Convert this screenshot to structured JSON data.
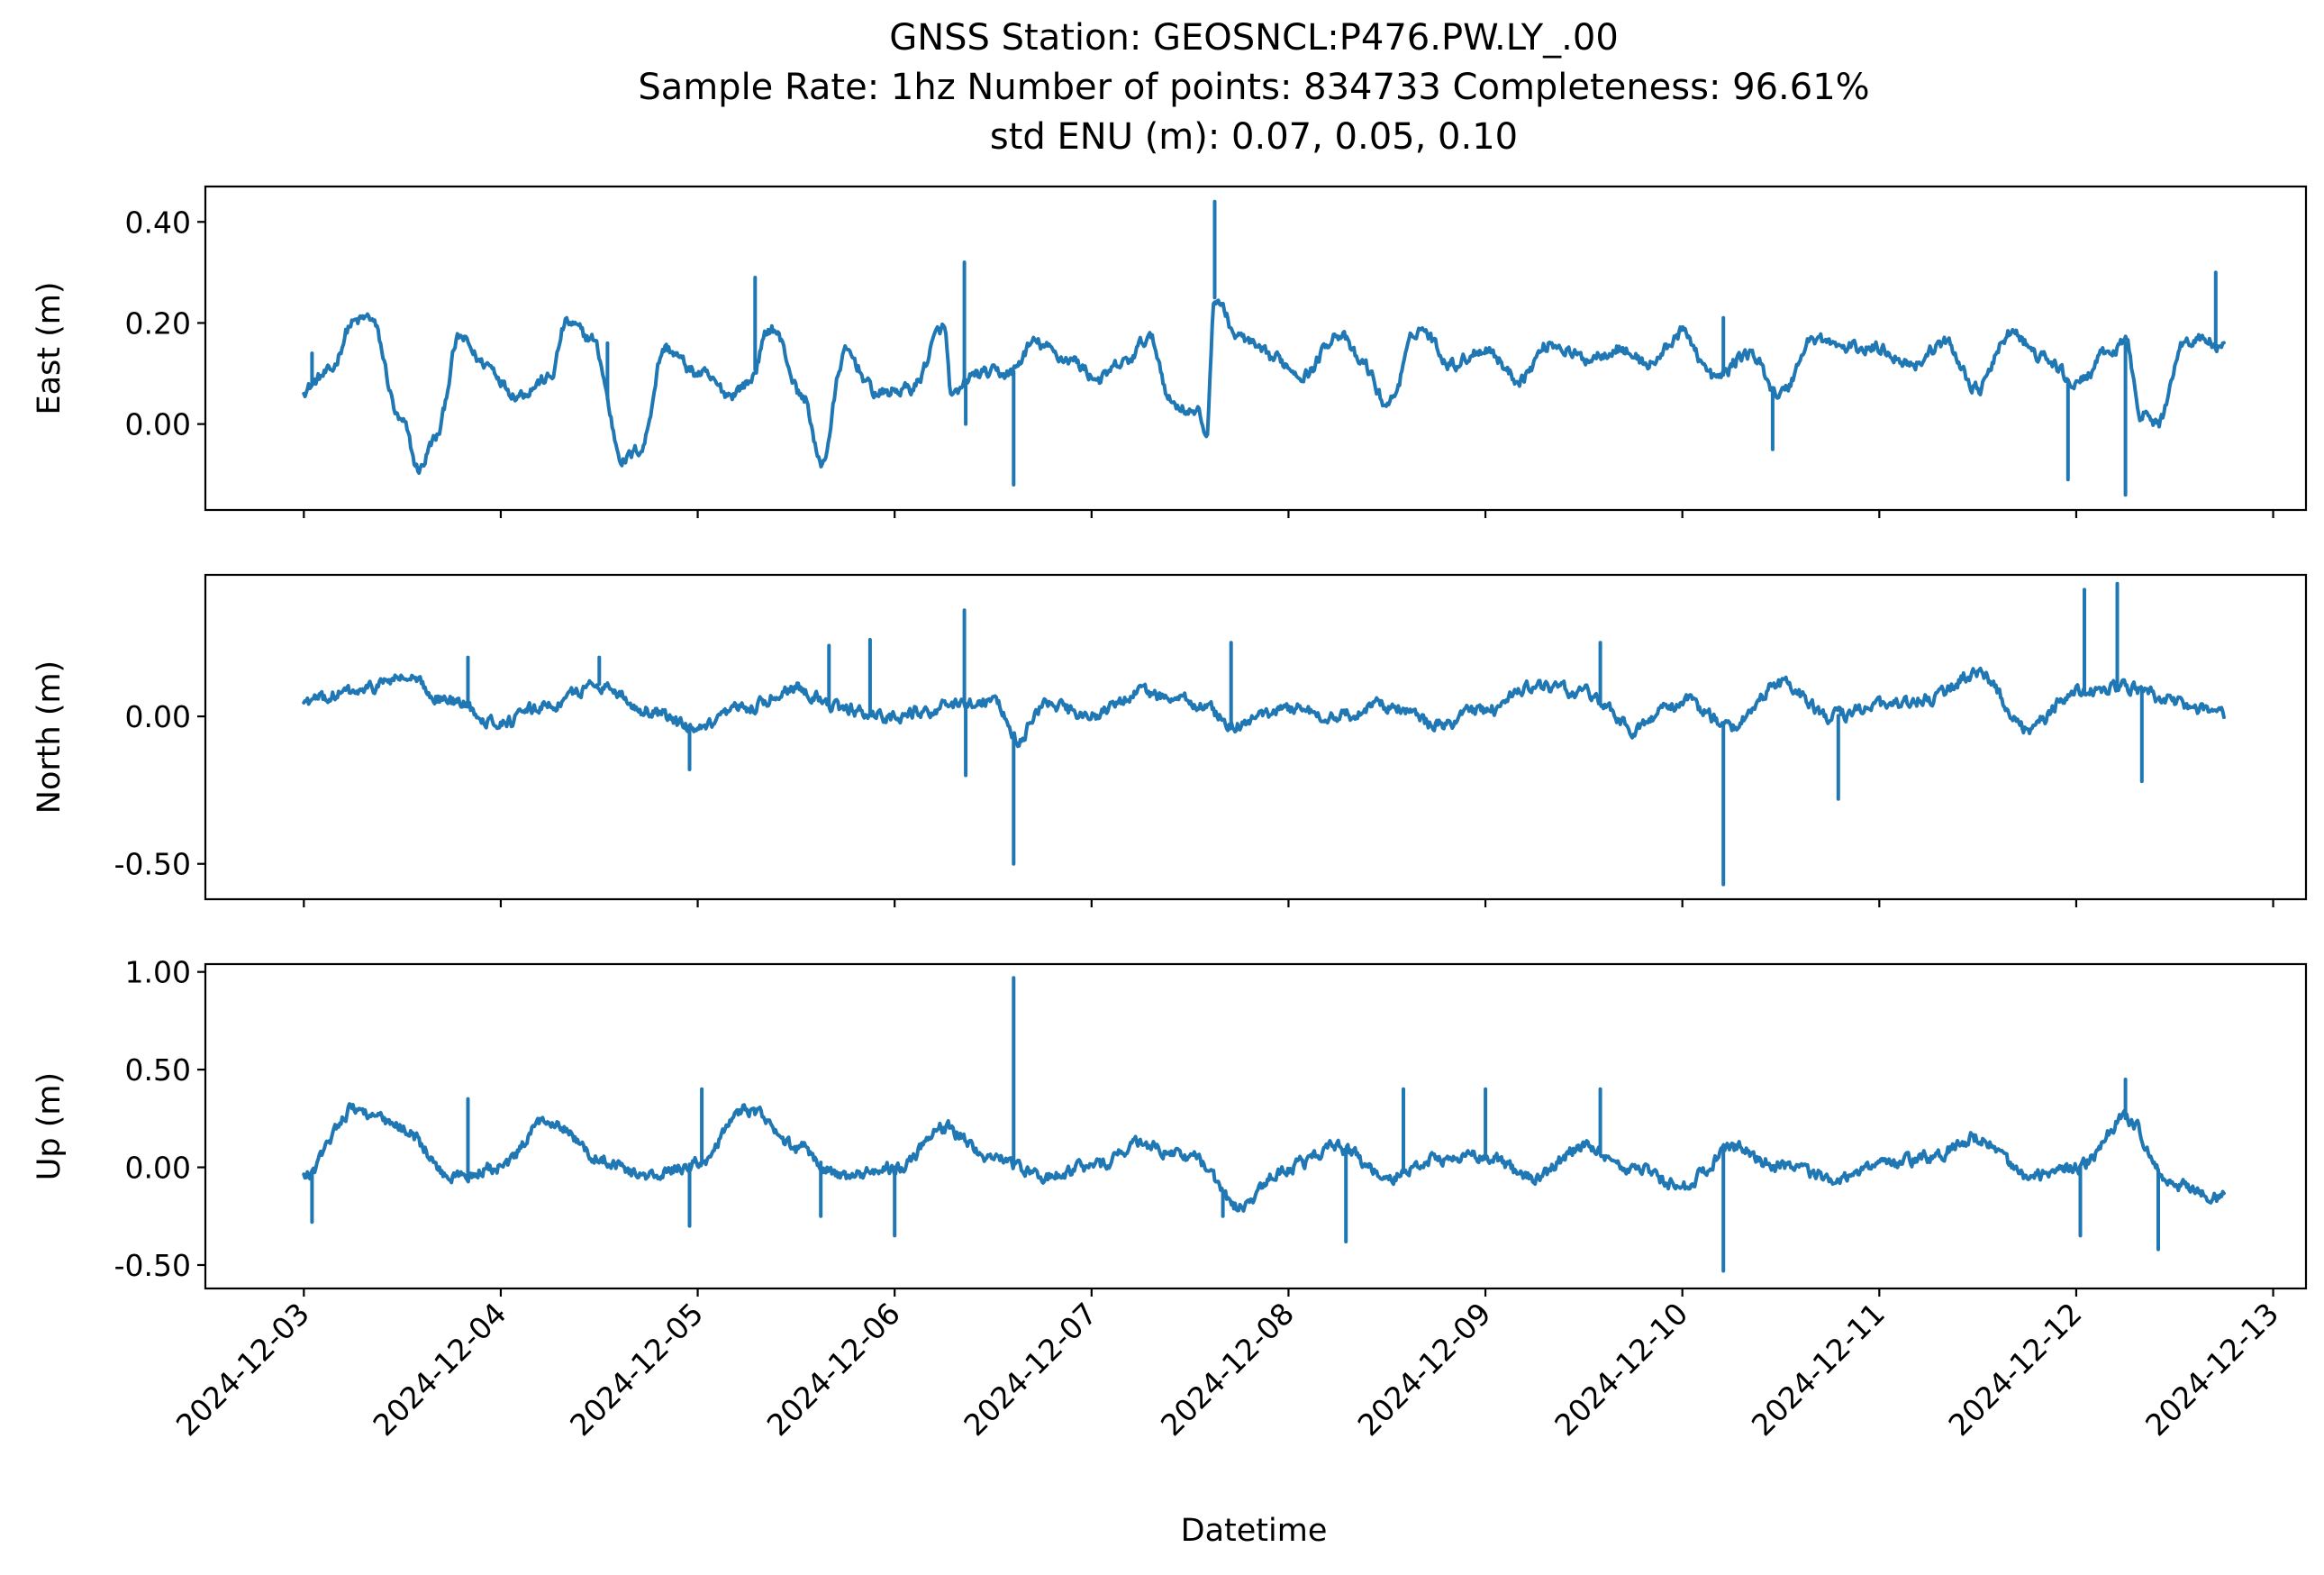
{
  "chart_data": {
    "type": "line",
    "title_lines": [
      "GNSS Station: GEOSNCL:P476.PW.LY_.00",
      "Sample Rate: 1hz   Number of points: 834733    Completeness:  96.61%",
      "std ENU (m):  0.07, 0.05, 0.10"
    ],
    "xlabel": "Datetime",
    "x_ticks": [
      "2024-12-03",
      "2024-12-04",
      "2024-12-05",
      "2024-12-06",
      "2024-12-07",
      "2024-12-08",
      "2024-12-09",
      "2024-12-10",
      "2024-12-11",
      "2024-12-12",
      "2024-12-13"
    ],
    "x_range": [
      "2024-12-02 12:00",
      "2024-12-13 04:00"
    ],
    "data_range": [
      "2024-12-03 00:00",
      "2024-12-12 18:00"
    ],
    "line_color": "#1f77b4",
    "grid": false,
    "panels": [
      {
        "ylabel": "East (m)",
        "ylim": [
          -0.17,
          0.47
        ],
        "y_ticks": [
          {
            "v": 0.4,
            "t": "0.40"
          },
          {
            "v": 0.2,
            "t": "0.20"
          },
          {
            "v": 0.0,
            "t": "0.00"
          }
        ],
        "x_tick_labels_shown": false,
        "x": [
          "2024-12-03 00:00",
          "2024-12-03 03:00",
          "2024-12-03 06:00",
          "2024-12-03 08:00",
          "2024-12-03 12:00",
          "2024-12-03 14:00",
          "2024-12-03 16:00",
          "2024-12-03 19:00",
          "2024-12-03 22:00",
          "2024-12-04 02:00",
          "2024-12-04 06:00",
          "2024-12-04 08:00",
          "2024-12-04 11:00",
          "2024-12-04 15:00",
          "2024-12-04 17:00",
          "2024-12-04 20:00",
          "2024-12-05 00:00",
          "2024-12-05 04:00",
          "2024-12-05 06:00",
          "2024-12-05 09:00",
          "2024-12-05 13:00",
          "2024-12-05 15:00",
          "2024-12-05 18:00",
          "2024-12-05 22:00",
          "2024-12-06 02:00",
          "2024-12-06 06:00",
          "2024-12-06 07:00",
          "2024-12-06 10:00",
          "2024-12-06 14:00",
          "2024-12-06 17:00",
          "2024-12-06 21:00",
          "2024-12-07 01:00",
          "2024-12-07 04:00",
          "2024-12-07 07:00",
          "2024-12-07 10:00",
          "2024-12-07 13:00",
          "2024-12-07 14:00",
          "2024-12-07 15:00",
          "2024-12-07 18:00",
          "2024-12-07 22:00",
          "2024-12-08 02:00",
          "2024-12-08 06:00",
          "2024-12-08 09:00",
          "2024-12-08 12:00",
          "2024-12-08 16:00",
          "2024-12-08 20:00",
          "2024-12-09 00:00",
          "2024-12-09 04:00",
          "2024-12-09 08:00",
          "2024-12-09 12:00",
          "2024-12-09 16:00",
          "2024-12-09 20:00",
          "2024-12-10 00:00",
          "2024-12-10 04:00",
          "2024-12-10 08:00",
          "2024-12-10 12:00",
          "2024-12-10 16:00",
          "2024-12-10 20:00",
          "2024-12-11 00:00",
          "2024-12-11 04:00",
          "2024-12-11 08:00",
          "2024-12-11 12:00",
          "2024-12-11 16:00",
          "2024-12-11 20:00",
          "2024-12-12 00:00",
          "2024-12-12 04:00",
          "2024-12-12 06:00",
          "2024-12-12 08:00",
          "2024-12-12 10:00",
          "2024-12-12 13:00",
          "2024-12-12 15:00",
          "2024-12-12 18:00"
        ],
        "values": [
          0.07,
          0.1,
          0.2,
          0.21,
          0.0,
          -0.09,
          -0.03,
          0.17,
          0.12,
          0.06,
          0.09,
          0.2,
          0.17,
          -0.07,
          -0.05,
          0.15,
          0.1,
          0.06,
          0.08,
          0.19,
          0.05,
          -0.08,
          0.14,
          0.06,
          0.07,
          0.19,
          0.05,
          0.1,
          0.1,
          0.16,
          0.13,
          0.09,
          0.12,
          0.17,
          0.04,
          0.02,
          -0.02,
          0.25,
          0.17,
          0.13,
          0.1,
          0.18,
          0.12,
          0.04,
          0.19,
          0.12,
          0.15,
          0.09,
          0.16,
          0.13,
          0.15,
          0.12,
          0.18,
          0.09,
          0.14,
          0.06,
          0.17,
          0.15,
          0.15,
          0.12,
          0.16,
          0.07,
          0.18,
          0.13,
          0.08,
          0.14,
          0.16,
          0.02,
          0.0,
          0.16,
          0.17,
          0.15
        ],
        "spikes": [
          {
            "x": "2024-12-03 01:00",
            "v": 0.14
          },
          {
            "x": "2024-12-04 13:00",
            "v": 0.16
          },
          {
            "x": "2024-12-05 07:00",
            "v": 0.29
          },
          {
            "x": "2024-12-06 08:30",
            "v": 0.32
          },
          {
            "x": "2024-12-06 08:40",
            "v": 0.0
          },
          {
            "x": "2024-12-06 14:30",
            "v": -0.12
          },
          {
            "x": "2024-12-07 15:00",
            "v": 0.44
          },
          {
            "x": "2024-12-10 05:00",
            "v": 0.21
          },
          {
            "x": "2024-12-10 11:00",
            "v": -0.05
          },
          {
            "x": "2024-12-11 23:00",
            "v": -0.11
          },
          {
            "x": "2024-12-12 06:00",
            "v": -0.14
          },
          {
            "x": "2024-12-12 17:00",
            "v": 0.3
          }
        ]
      },
      {
        "ylabel": "North (m)",
        "ylim": [
          -0.62,
          0.48
        ],
        "y_ticks": [
          {
            "v": 0.0,
            "t": "0.00"
          },
          {
            "v": -0.5,
            "t": "-0.50"
          }
        ],
        "x_tick_labels_shown": false,
        "x": [
          "2024-12-03 00:00",
          "2024-12-03 06:00",
          "2024-12-03 12:00",
          "2024-12-03 18:00",
          "2024-12-04 00:00",
          "2024-12-04 06:00",
          "2024-12-04 12:00",
          "2024-12-04 18:00",
          "2024-12-05 00:00",
          "2024-12-05 06:00",
          "2024-12-05 12:00",
          "2024-12-05 18:00",
          "2024-12-06 00:00",
          "2024-12-06 06:00",
          "2024-12-06 12:00",
          "2024-12-06 15:00",
          "2024-12-06 18:00",
          "2024-12-07 00:00",
          "2024-12-07 06:00",
          "2024-12-07 12:00",
          "2024-12-07 18:00",
          "2024-12-08 00:00",
          "2024-12-08 06:00",
          "2024-12-08 12:00",
          "2024-12-08 18:00",
          "2024-12-09 00:00",
          "2024-12-09 06:00",
          "2024-12-09 12:00",
          "2024-12-09 18:00",
          "2024-12-10 00:00",
          "2024-12-10 06:00",
          "2024-12-10 12:00",
          "2024-12-10 18:00",
          "2024-12-11 00:00",
          "2024-12-11 06:00",
          "2024-12-11 12:00",
          "2024-12-11 18:00",
          "2024-12-12 00:00",
          "2024-12-12 06:00",
          "2024-12-12 12:00",
          "2024-12-12 18:00"
        ],
        "values": [
          0.05,
          0.08,
          0.13,
          0.05,
          -0.02,
          0.04,
          0.11,
          0.02,
          -0.05,
          0.03,
          0.1,
          0.02,
          0.0,
          0.03,
          0.06,
          -0.08,
          0.04,
          0.0,
          0.08,
          0.05,
          -0.03,
          0.03,
          0.0,
          0.04,
          -0.03,
          0.02,
          0.1,
          0.08,
          -0.04,
          0.05,
          -0.03,
          0.11,
          0.0,
          0.03,
          0.06,
          0.15,
          -0.04,
          0.08,
          0.1,
          0.05,
          0.0
        ],
        "spikes": [
          {
            "x": "2024-12-03 20:00",
            "v": 0.2
          },
          {
            "x": "2024-12-04 12:00",
            "v": 0.2
          },
          {
            "x": "2024-12-04 23:00",
            "v": -0.18
          },
          {
            "x": "2024-12-05 16:00",
            "v": 0.24
          },
          {
            "x": "2024-12-05 21:00",
            "v": 0.26
          },
          {
            "x": "2024-12-06 08:30",
            "v": 0.36
          },
          {
            "x": "2024-12-06 08:40",
            "v": -0.2
          },
          {
            "x": "2024-12-06 14:30",
            "v": -0.5
          },
          {
            "x": "2024-12-07 17:00",
            "v": 0.25
          },
          {
            "x": "2024-12-09 14:00",
            "v": 0.25
          },
          {
            "x": "2024-12-10 05:00",
            "v": -0.57
          },
          {
            "x": "2024-12-10 19:00",
            "v": -0.28
          },
          {
            "x": "2024-12-12 01:00",
            "v": 0.43
          },
          {
            "x": "2024-12-12 05:00",
            "v": 0.45
          },
          {
            "x": "2024-12-12 08:00",
            "v": -0.22
          }
        ]
      },
      {
        "ylabel": "Up (m)",
        "ylim": [
          -0.62,
          1.04
        ],
        "y_ticks": [
          {
            "v": 1.0,
            "t": "1.00"
          },
          {
            "v": 0.5,
            "t": "0.50"
          },
          {
            "v": 0.0,
            "t": "0.00"
          },
          {
            "v": -0.5,
            "t": "-0.50"
          }
        ],
        "x_tick_labels_shown": true,
        "x": [
          "2024-12-03 00:00",
          "2024-12-03 06:00",
          "2024-12-03 12:00",
          "2024-12-03 18:00",
          "2024-12-04 00:00",
          "2024-12-04 06:00",
          "2024-12-04 12:00",
          "2024-12-04 18:00",
          "2024-12-05 00:00",
          "2024-12-05 06:00",
          "2024-12-05 12:00",
          "2024-12-05 18:00",
          "2024-12-06 00:00",
          "2024-12-06 06:00",
          "2024-12-06 12:00",
          "2024-12-06 18:00",
          "2024-12-07 00:00",
          "2024-12-07 06:00",
          "2024-12-07 12:00",
          "2024-12-07 18:00",
          "2024-12-08 00:00",
          "2024-12-08 06:00",
          "2024-12-08 12:00",
          "2024-12-08 18:00",
          "2024-12-09 00:00",
          "2024-12-09 06:00",
          "2024-12-09 12:00",
          "2024-12-09 18:00",
          "2024-12-10 00:00",
          "2024-12-10 06:00",
          "2024-12-10 12:00",
          "2024-12-10 18:00",
          "2024-12-11 00:00",
          "2024-12-11 06:00",
          "2024-12-11 12:00",
          "2024-12-11 18:00",
          "2024-12-12 00:00",
          "2024-12-12 06:00",
          "2024-12-12 12:00",
          "2024-12-12 18:00"
        ],
        "values": [
          -0.05,
          0.3,
          0.2,
          -0.05,
          0.0,
          0.25,
          0.05,
          -0.05,
          0.02,
          0.3,
          0.1,
          -0.05,
          0.0,
          0.2,
          0.05,
          -0.05,
          0.0,
          0.12,
          0.05,
          -0.2,
          0.0,
          0.1,
          -0.05,
          0.05,
          0.05,
          -0.05,
          0.1,
          0.0,
          -0.1,
          0.1,
          0.0,
          -0.05,
          0.0,
          0.05,
          0.15,
          -0.05,
          0.0,
          0.25,
          -0.1,
          -0.15
        ],
        "spikes": [
          {
            "x": "2024-12-03 01:00",
            "v": -0.28
          },
          {
            "x": "2024-12-03 20:00",
            "v": 0.35
          },
          {
            "x": "2024-12-04 23:00",
            "v": -0.3
          },
          {
            "x": "2024-12-05 00:30",
            "v": 0.4
          },
          {
            "x": "2024-12-05 15:00",
            "v": -0.25
          },
          {
            "x": "2024-12-06 00:00",
            "v": -0.35
          },
          {
            "x": "2024-12-06 14:30",
            "v": 0.97
          },
          {
            "x": "2024-12-07 16:00",
            "v": -0.25
          },
          {
            "x": "2024-12-08 07:00",
            "v": -0.38
          },
          {
            "x": "2024-12-08 14:00",
            "v": 0.4
          },
          {
            "x": "2024-12-09 00:00",
            "v": 0.4
          },
          {
            "x": "2024-12-09 14:00",
            "v": 0.4
          },
          {
            "x": "2024-12-10 05:00",
            "v": -0.53
          },
          {
            "x": "2024-12-12 00:30",
            "v": -0.35
          },
          {
            "x": "2024-12-12 06:00",
            "v": 0.45
          },
          {
            "x": "2024-12-12 10:00",
            "v": -0.42
          }
        ]
      }
    ]
  }
}
